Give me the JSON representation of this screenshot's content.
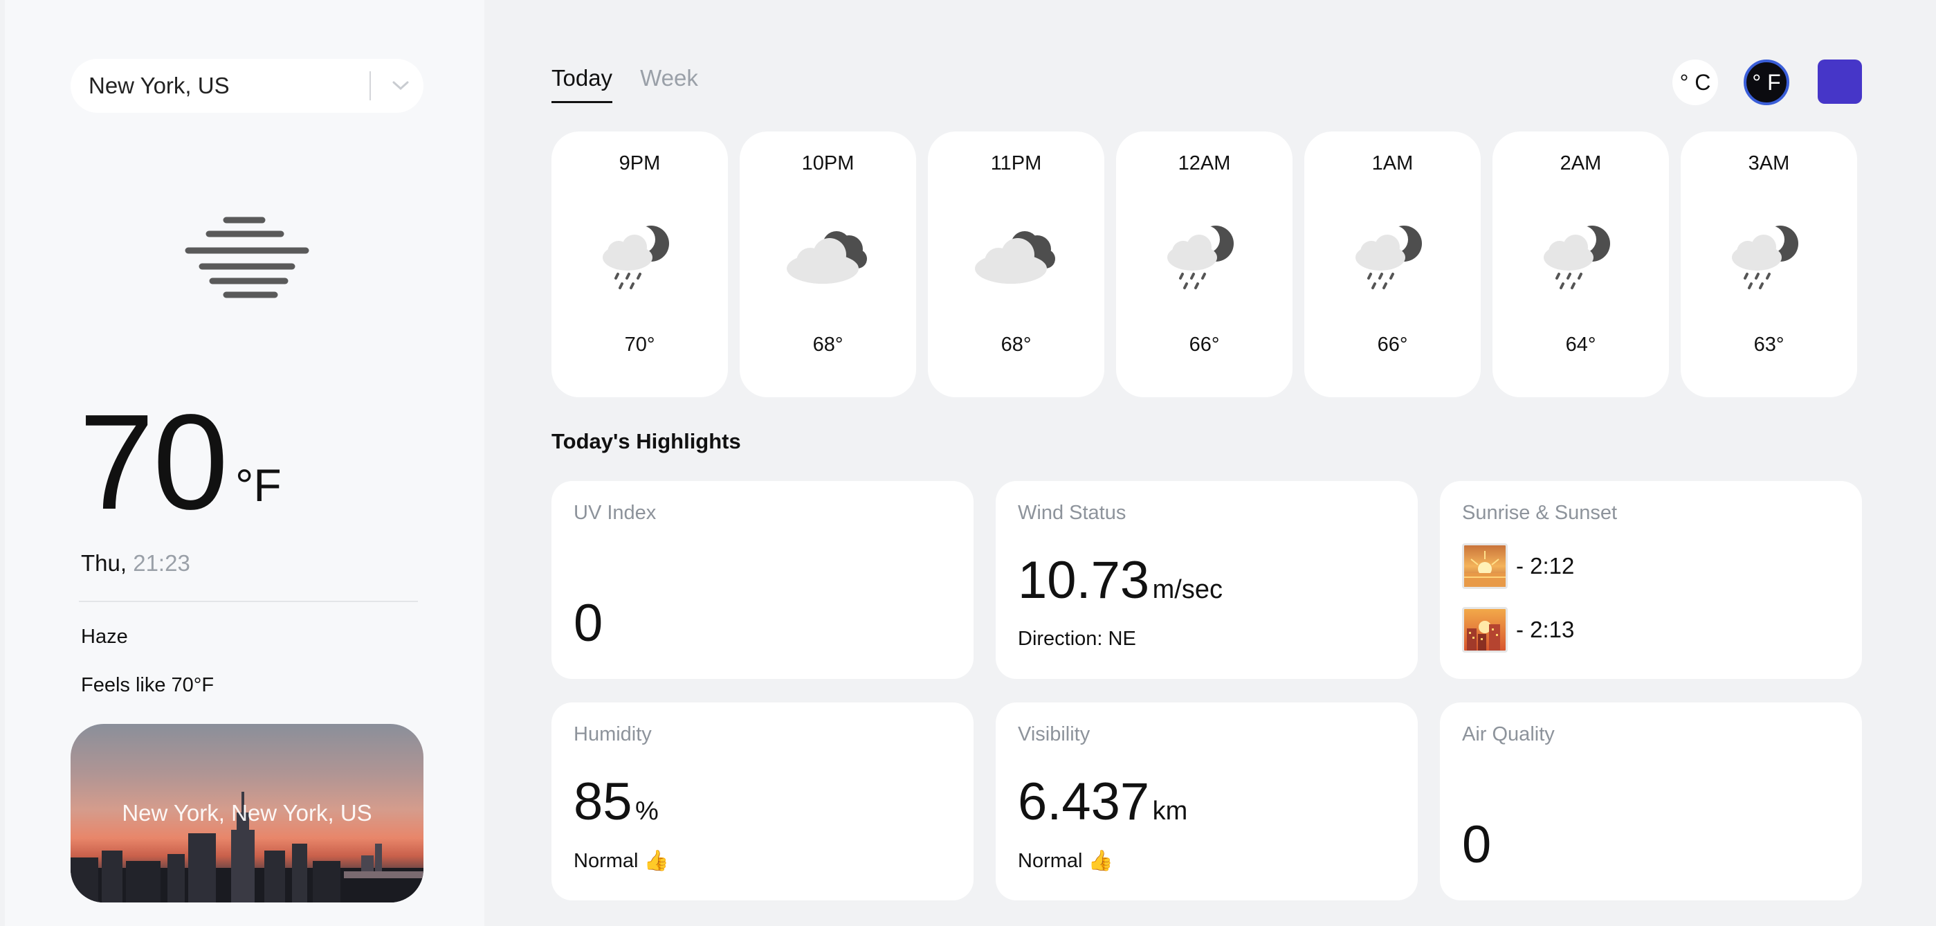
{
  "search": {
    "value": "New York, US"
  },
  "current": {
    "temp": "70",
    "unit": "°F",
    "day": "Thu,",
    "time": "21:23",
    "condition": "Haze",
    "feels_like": "Feels like 70°F",
    "city_label": "New York, New York, US"
  },
  "tabs": [
    {
      "label": "Today",
      "active": true
    },
    {
      "label": "Week",
      "active": false
    }
  ],
  "units": {
    "celsius": "° C",
    "fahrenheit": "° F"
  },
  "accent": "#4636c8",
  "hourly": [
    {
      "time": "9PM",
      "icon": "night-rain-icon",
      "temp": "70°"
    },
    {
      "time": "10PM",
      "icon": "night-cloudy-icon",
      "temp": "68°"
    },
    {
      "time": "11PM",
      "icon": "night-cloudy-icon",
      "temp": "68°"
    },
    {
      "time": "12AM",
      "icon": "night-rain-icon",
      "temp": "66°"
    },
    {
      "time": "1AM",
      "icon": "night-rain-icon",
      "temp": "66°"
    },
    {
      "time": "2AM",
      "icon": "night-rain-icon",
      "temp": "64°"
    },
    {
      "time": "3AM",
      "icon": "night-rain-icon",
      "temp": "63°"
    }
  ],
  "highlights": {
    "title": "Today's Highlights",
    "uv": {
      "title": "UV Index",
      "value": "0"
    },
    "wind": {
      "title": "Wind Status",
      "value": "10.73",
      "unit": "m/sec",
      "direction": "Direction: NE"
    },
    "sun": {
      "title": "Sunrise & Sunset",
      "sunrise": "- 2:12",
      "sunset": "- 2:13"
    },
    "humidity": {
      "title": "Humidity",
      "value": "85",
      "unit": "%",
      "status": "Normal 👍"
    },
    "visibility": {
      "title": "Visibility",
      "value": "6.437",
      "unit": "km",
      "status": "Normal 👍"
    },
    "air": {
      "title": "Air Quality",
      "value": "0"
    }
  }
}
